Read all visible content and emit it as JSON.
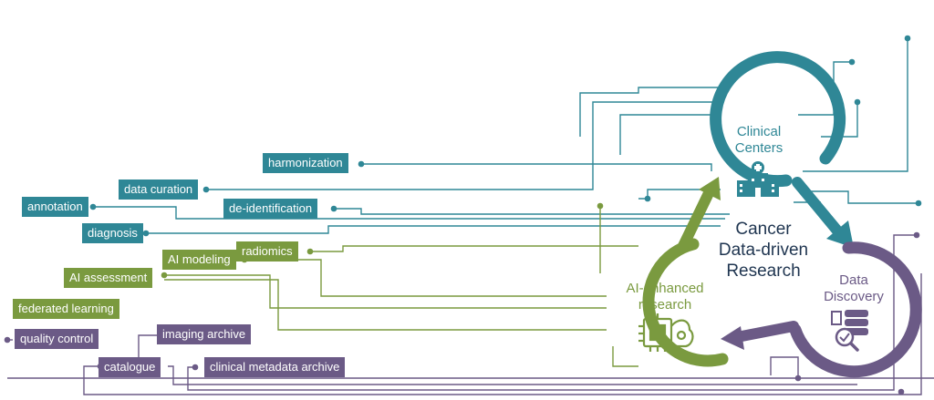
{
  "colors": {
    "teal": "#2f8796",
    "green": "#7a9a3f",
    "purple": "#6b5a86",
    "center_text": "#1f3550"
  },
  "center": {
    "line1": "Cancer",
    "line2": "Data-driven",
    "line3": "Research"
  },
  "hubs": {
    "clinical": {
      "line1": "Clinical",
      "line2": "Centers",
      "icon": "hospital-icon"
    },
    "ai": {
      "line1": "AI-enhanced",
      "line2": "research",
      "icon": "ai-brain-chip-icon"
    },
    "data": {
      "line1": "Data",
      "line2": "Discovery",
      "icon": "database-search-icon"
    }
  },
  "labels": {
    "teal": [
      "harmonization",
      "data curation",
      "annotation",
      "de-identification",
      "diagnosis"
    ],
    "green": [
      "AI modeling",
      "radiomics",
      "AI assessment",
      "federated learning"
    ],
    "purple": [
      "quality control",
      "imaging archive",
      "catalogue",
      "clinical metadata archive"
    ]
  }
}
